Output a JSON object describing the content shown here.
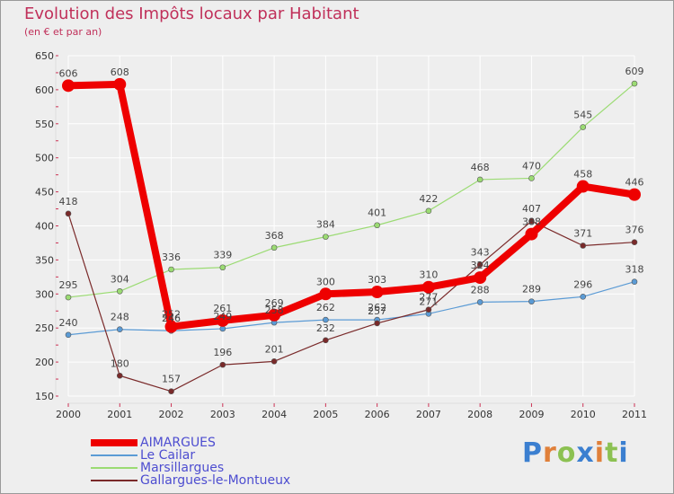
{
  "chart_data": {
    "type": "line",
    "title": "Evolution des Impôts locaux par Habitant",
    "subtitle": "(en € et par an)",
    "xlabel": "",
    "ylabel": "",
    "x": [
      "2000",
      "2001",
      "2002",
      "2003",
      "2004",
      "2005",
      "2006",
      "2007",
      "2008",
      "2009",
      "2010",
      "2011"
    ],
    "ylim": [
      150,
      650
    ],
    "yticks": [
      "150",
      "200",
      "250",
      "300",
      "350",
      "400",
      "450",
      "500",
      "550",
      "600",
      "650"
    ],
    "series": [
      {
        "name": "AIMARGUES",
        "color": "#ee0000",
        "values": [
          606,
          608,
          252,
          261,
          269,
          300,
          303,
          310,
          324,
          388,
          458,
          446
        ]
      },
      {
        "name": "Le Cailar",
        "color": "#5b9bd5",
        "values": [
          240,
          248,
          246,
          249,
          258,
          262,
          262,
          271,
          288,
          289,
          296,
          318
        ]
      },
      {
        "name": "Marsillargues",
        "color": "#9bdb73",
        "values": [
          295,
          304,
          336,
          339,
          368,
          384,
          401,
          422,
          468,
          470,
          545,
          609
        ]
      },
      {
        "name": "Gallargues-le-Montueux",
        "color": "#7a2a2a",
        "values": [
          418,
          180,
          157,
          196,
          201,
          232,
          257,
          277,
          343,
          407,
          371,
          376
        ]
      }
    ],
    "legend_position": "bottom-left",
    "grid": true
  },
  "logo": {
    "letters": [
      "P",
      "r",
      "o",
      "x",
      "i",
      "t",
      "i"
    ],
    "colors": [
      "#3b7fd0",
      "#e0803a",
      "#8cc152",
      "#3b7fd0",
      "#e0803a",
      "#8cc152",
      "#3b7fd0"
    ]
  }
}
